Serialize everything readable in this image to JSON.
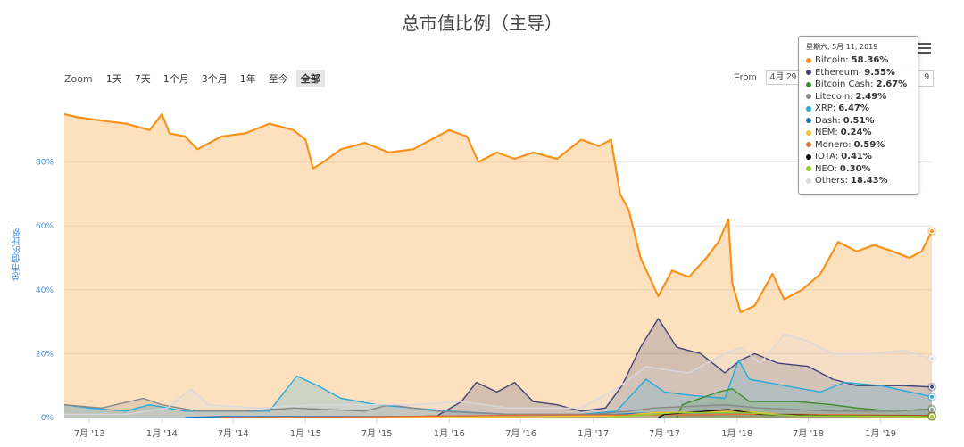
{
  "title": "总市值比例（主导）",
  "zoom": {
    "label": "Zoom",
    "buttons": [
      "1天",
      "7天",
      "1个月",
      "3个月",
      "1年",
      "至今",
      "全部"
    ],
    "active_index": 6
  },
  "range": {
    "from_label": "From",
    "from_value": "4月 29",
    "to_value": "9"
  },
  "tooltip": {
    "date": "星期六, 5月 11, 2019",
    "rows": [
      {
        "name": "Bitcoin:",
        "value": "58.36%",
        "color": "#f7931a"
      },
      {
        "name": "Ethereum:",
        "value": "9.55%",
        "color": "#434378"
      },
      {
        "name": "Bitcoin Cash:",
        "value": "2.67%",
        "color": "#3a8c2e"
      },
      {
        "name": "Litecoin:",
        "value": "2.49%",
        "color": "#888888"
      },
      {
        "name": "XRP:",
        "value": "6.47%",
        "color": "#2aa8d8"
      },
      {
        "name": "Dash:",
        "value": "0.51%",
        "color": "#1c75bc"
      },
      {
        "name": "NEM:",
        "value": "0.24%",
        "color": "#f4c430"
      },
      {
        "name": "Monero:",
        "value": "0.59%",
        "color": "#e8733a"
      },
      {
        "name": "IOTA:",
        "value": "0.41%",
        "color": "#111111"
      },
      {
        "name": "NEO:",
        "value": "0.30%",
        "color": "#9acd32"
      },
      {
        "name": "Others:",
        "value": "18.43%",
        "color": "#d8d8e0"
      }
    ]
  },
  "chart_data": {
    "type": "area",
    "title": "总市值比例（主导）",
    "ylabel": "总市值的比例",
    "ylim": [
      0,
      100
    ],
    "y_ticks": [
      "0%",
      "20%",
      "40%",
      "60%",
      "80%"
    ],
    "y_tick_values": [
      0,
      20,
      40,
      60,
      80
    ],
    "x_ticks": [
      "7月 '13",
      "1月 '14",
      "7月 '14",
      "1月 '15",
      "7月 '15",
      "1月 '16",
      "7月 '16",
      "1月 '17",
      "7月 '17",
      "1月 '18",
      "7月 '18",
      "1月 '19"
    ],
    "x_range": [
      "2013-04-28",
      "2019-05-11"
    ],
    "x_tick_dates": [
      "2013-07-01",
      "2014-01-01",
      "2014-07-01",
      "2015-01-01",
      "2015-07-01",
      "2016-01-01",
      "2016-07-01",
      "2017-01-01",
      "2017-07-01",
      "2018-01-01",
      "2018-07-01",
      "2019-01-01"
    ],
    "series": [
      {
        "name": "Bitcoin",
        "color": "#f7931a",
        "points": [
          [
            "2013-04-28",
            95
          ],
          [
            "2013-06-01",
            94
          ],
          [
            "2013-08-01",
            93
          ],
          [
            "2013-10-01",
            92
          ],
          [
            "2013-12-01",
            90
          ],
          [
            "2014-01-01",
            95
          ],
          [
            "2014-01-20",
            89
          ],
          [
            "2014-03-01",
            88
          ],
          [
            "2014-04-01",
            84
          ],
          [
            "2014-06-01",
            88
          ],
          [
            "2014-08-01",
            89
          ],
          [
            "2014-10-01",
            92
          ],
          [
            "2014-12-01",
            90
          ],
          [
            "2015-01-01",
            87
          ],
          [
            "2015-01-20",
            78
          ],
          [
            "2015-02-15",
            80
          ],
          [
            "2015-04-01",
            84
          ],
          [
            "2015-06-01",
            86
          ],
          [
            "2015-08-01",
            83
          ],
          [
            "2015-10-01",
            84
          ],
          [
            "2015-12-01",
            88
          ],
          [
            "2016-01-01",
            90
          ],
          [
            "2016-02-15",
            88
          ],
          [
            "2016-03-15",
            80
          ],
          [
            "2016-05-01",
            83
          ],
          [
            "2016-06-15",
            81
          ],
          [
            "2016-08-01",
            83
          ],
          [
            "2016-10-01",
            81
          ],
          [
            "2016-12-01",
            87
          ],
          [
            "2017-01-15",
            85
          ],
          [
            "2017-02-15",
            87
          ],
          [
            "2017-03-10",
            70
          ],
          [
            "2017-04-01",
            65
          ],
          [
            "2017-05-01",
            50
          ],
          [
            "2017-06-15",
            38
          ],
          [
            "2017-07-20",
            46
          ],
          [
            "2017-09-01",
            44
          ],
          [
            "2017-10-15",
            50
          ],
          [
            "2017-11-15",
            55
          ],
          [
            "2017-12-10",
            62
          ],
          [
            "2017-12-20",
            42
          ],
          [
            "2018-01-10",
            33
          ],
          [
            "2018-02-15",
            35
          ],
          [
            "2018-04-01",
            45
          ],
          [
            "2018-05-01",
            37
          ],
          [
            "2018-06-15",
            40
          ],
          [
            "2018-08-01",
            45
          ],
          [
            "2018-09-15",
            55
          ],
          [
            "2018-11-01",
            52
          ],
          [
            "2018-12-15",
            54
          ],
          [
            "2019-02-01",
            52
          ],
          [
            "2019-03-15",
            50
          ],
          [
            "2019-04-15",
            52
          ],
          [
            "2019-05-11",
            58.36
          ]
        ]
      },
      {
        "name": "Ethereum",
        "color": "#434378",
        "points": [
          [
            "2015-08-01",
            0
          ],
          [
            "2015-12-01",
            0.5
          ],
          [
            "2016-02-01",
            5
          ],
          [
            "2016-03-10",
            11
          ],
          [
            "2016-05-01",
            8
          ],
          [
            "2016-06-15",
            11
          ],
          [
            "2016-08-01",
            5
          ],
          [
            "2016-10-01",
            4
          ],
          [
            "2016-12-01",
            2
          ],
          [
            "2017-02-01",
            3
          ],
          [
            "2017-03-15",
            10
          ],
          [
            "2017-05-01",
            22
          ],
          [
            "2017-06-15",
            31
          ],
          [
            "2017-08-01",
            22
          ],
          [
            "2017-10-01",
            20
          ],
          [
            "2017-12-01",
            14
          ],
          [
            "2018-01-10",
            18
          ],
          [
            "2018-02-15",
            20
          ],
          [
            "2018-04-15",
            17
          ],
          [
            "2018-07-01",
            16
          ],
          [
            "2018-09-01",
            12
          ],
          [
            "2018-11-01",
            10
          ],
          [
            "2019-01-01",
            10
          ],
          [
            "2019-03-01",
            10
          ],
          [
            "2019-05-11",
            9.55
          ]
        ]
      },
      {
        "name": "XRP",
        "color": "#2aa8d8",
        "points": [
          [
            "2013-04-28",
            4
          ],
          [
            "2013-07-01",
            3
          ],
          [
            "2013-10-01",
            2
          ],
          [
            "2013-12-01",
            4
          ],
          [
            "2014-03-01",
            2
          ],
          [
            "2014-06-01",
            2
          ],
          [
            "2014-10-01",
            2
          ],
          [
            "2014-12-10",
            13
          ],
          [
            "2015-02-01",
            10
          ],
          [
            "2015-04-01",
            6
          ],
          [
            "2015-07-01",
            4
          ],
          [
            "2015-10-01",
            3
          ],
          [
            "2016-01-01",
            2
          ],
          [
            "2016-06-01",
            1
          ],
          [
            "2016-12-01",
            1
          ],
          [
            "2017-03-01",
            2
          ],
          [
            "2017-05-15",
            12
          ],
          [
            "2017-07-01",
            8
          ],
          [
            "2017-09-01",
            7
          ],
          [
            "2017-12-01",
            6
          ],
          [
            "2018-01-05",
            18
          ],
          [
            "2018-02-01",
            12
          ],
          [
            "2018-05-01",
            10
          ],
          [
            "2018-08-01",
            8
          ],
          [
            "2018-10-01",
            11
          ],
          [
            "2019-01-01",
            10
          ],
          [
            "2019-05-11",
            6.47
          ]
        ]
      },
      {
        "name": "Bitcoin Cash",
        "color": "#3a8c2e",
        "points": [
          [
            "2017-08-01",
            0
          ],
          [
            "2017-08-15",
            4
          ],
          [
            "2017-11-15",
            8
          ],
          [
            "2017-12-20",
            9
          ],
          [
            "2018-02-01",
            5
          ],
          [
            "2018-06-01",
            5
          ],
          [
            "2018-09-01",
            4
          ],
          [
            "2018-11-01",
            3
          ],
          [
            "2019-02-01",
            2
          ],
          [
            "2019-05-11",
            2.67
          ]
        ]
      },
      {
        "name": "Litecoin",
        "color": "#888888",
        "points": [
          [
            "2013-04-28",
            4
          ],
          [
            "2013-08-01",
            3
          ],
          [
            "2013-11-15",
            6
          ],
          [
            "2014-01-01",
            4
          ],
          [
            "2014-04-01",
            2
          ],
          [
            "2014-08-01",
            2
          ],
          [
            "2014-12-01",
            3
          ],
          [
            "2015-06-01",
            2
          ],
          [
            "2015-08-01",
            4
          ],
          [
            "2015-12-01",
            2
          ],
          [
            "2016-06-01",
            1
          ],
          [
            "2017-01-01",
            1
          ],
          [
            "2017-04-01",
            2
          ],
          [
            "2017-06-01",
            3
          ],
          [
            "2017-12-01",
            4
          ],
          [
            "2018-03-01",
            3
          ],
          [
            "2018-09-01",
            2
          ],
          [
            "2019-02-01",
            2
          ],
          [
            "2019-05-11",
            2.49
          ]
        ]
      },
      {
        "name": "Dash",
        "color": "#1c75bc",
        "points": [
          [
            "2014-03-01",
            0
          ],
          [
            "2014-06-01",
            0.3
          ],
          [
            "2015-06-01",
            0.3
          ],
          [
            "2016-06-01",
            0.5
          ],
          [
            "2017-03-01",
            1
          ],
          [
            "2017-06-01",
            1.5
          ],
          [
            "2018-01-01",
            1.5
          ],
          [
            "2018-06-01",
            0.9
          ],
          [
            "2019-05-11",
            0.51
          ]
        ]
      },
      {
        "name": "NEM",
        "color": "#f4c430",
        "points": [
          [
            "2015-04-01",
            0
          ],
          [
            "2016-01-01",
            0.1
          ],
          [
            "2017-03-01",
            0.5
          ],
          [
            "2017-06-01",
            1.5
          ],
          [
            "2018-01-10",
            2
          ],
          [
            "2018-06-01",
            0.6
          ],
          [
            "2019-05-11",
            0.24
          ]
        ]
      },
      {
        "name": "Monero",
        "color": "#e8733a",
        "points": [
          [
            "2014-06-01",
            0
          ],
          [
            "2015-06-01",
            0.2
          ],
          [
            "2016-09-01",
            0.8
          ],
          [
            "2017-06-01",
            0.8
          ],
          [
            "2018-01-01",
            1
          ],
          [
            "2018-06-01",
            1
          ],
          [
            "2019-05-11",
            0.59
          ]
        ]
      },
      {
        "name": "IOTA",
        "color": "#111111",
        "points": [
          [
            "2017-06-15",
            0
          ],
          [
            "2017-07-01",
            1
          ],
          [
            "2017-12-10",
            2.5
          ],
          [
            "2018-03-01",
            1
          ],
          [
            "2018-09-01",
            0.6
          ],
          [
            "2019-05-11",
            0.41
          ]
        ]
      },
      {
        "name": "NEO",
        "color": "#9acd32",
        "points": [
          [
            "2017-02-01",
            0
          ],
          [
            "2017-08-01",
            1.5
          ],
          [
            "2018-01-15",
            1.5
          ],
          [
            "2018-06-01",
            0.6
          ],
          [
            "2019-05-11",
            0.3
          ]
        ]
      },
      {
        "name": "Others",
        "color": "#d8d8e0",
        "points": [
          [
            "2013-04-28",
            1
          ],
          [
            "2013-10-01",
            1
          ],
          [
            "2014-01-15",
            3
          ],
          [
            "2014-03-15",
            9
          ],
          [
            "2014-05-01",
            4
          ],
          [
            "2014-09-01",
            3
          ],
          [
            "2015-02-01",
            4
          ],
          [
            "2015-06-01",
            4
          ],
          [
            "2015-10-01",
            4
          ],
          [
            "2016-02-01",
            5
          ],
          [
            "2016-06-01",
            3
          ],
          [
            "2016-12-01",
            3
          ],
          [
            "2017-03-01",
            9
          ],
          [
            "2017-05-15",
            16
          ],
          [
            "2017-07-01",
            15
          ],
          [
            "2017-09-01",
            14
          ],
          [
            "2017-12-01",
            20
          ],
          [
            "2018-01-10",
            22
          ],
          [
            "2018-03-01",
            17
          ],
          [
            "2018-05-01",
            26
          ],
          [
            "2018-07-01",
            24
          ],
          [
            "2018-09-01",
            20
          ],
          [
            "2018-12-01",
            20
          ],
          [
            "2019-03-01",
            21
          ],
          [
            "2019-05-11",
            18.43
          ]
        ]
      }
    ]
  }
}
